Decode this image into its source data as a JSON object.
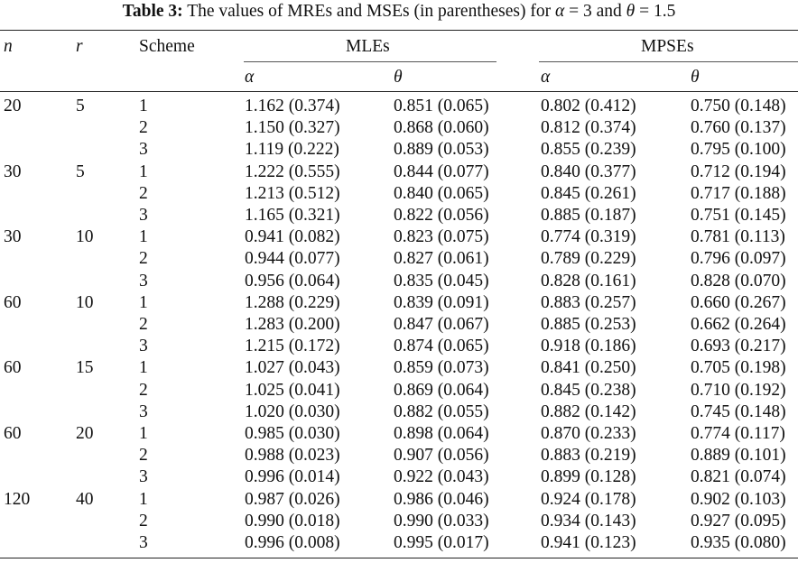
{
  "caption": {
    "label": "Table 3:",
    "pre": "The values of MREs and MSEs (in parentheses) for",
    "alpha_sym": "α",
    "alpha_eq": "= 3 and",
    "theta_sym": "θ",
    "theta_eq": "= 1.5"
  },
  "header": {
    "n": "n",
    "r": "r",
    "scheme": "Scheme",
    "mles": "MLEs",
    "mpses": "MPSEs",
    "alpha": "α",
    "theta": "θ"
  },
  "rows": [
    {
      "n": "20",
      "r": "5",
      "s": "1",
      "ma": "1.162 (0.374)",
      "mt": "0.851 (0.065)",
      "pa": "0.802 (0.412)",
      "pt": "0.750 (0.148)"
    },
    {
      "n": "",
      "r": "",
      "s": "2",
      "ma": "1.150 (0.327)",
      "mt": "0.868 (0.060)",
      "pa": "0.812 (0.374)",
      "pt": "0.760 (0.137)"
    },
    {
      "n": "",
      "r": "",
      "s": "3",
      "ma": "1.119 (0.222)",
      "mt": "0.889 (0.053)",
      "pa": "0.855 (0.239)",
      "pt": "0.795 (0.100)"
    },
    {
      "n": "30",
      "r": "5",
      "s": "1",
      "ma": "1.222 (0.555)",
      "mt": "0.844 (0.077)",
      "pa": "0.840 (0.377)",
      "pt": "0.712 (0.194)"
    },
    {
      "n": "",
      "r": "",
      "s": "2",
      "ma": "1.213 (0.512)",
      "mt": "0.840 (0.065)",
      "pa": "0.845 (0.261)",
      "pt": "0.717 (0.188)"
    },
    {
      "n": "",
      "r": "",
      "s": "3",
      "ma": "1.165 (0.321)",
      "mt": "0.822 (0.056)",
      "pa": "0.885 (0.187)",
      "pt": "0.751 (0.145)"
    },
    {
      "n": "30",
      "r": "10",
      "s": "1",
      "ma": "0.941 (0.082)",
      "mt": "0.823 (0.075)",
      "pa": "0.774 (0.319)",
      "pt": "0.781 (0.113)"
    },
    {
      "n": "",
      "r": "",
      "s": "2",
      "ma": "0.944 (0.077)",
      "mt": "0.827 (0.061)",
      "pa": "0.789 (0.229)",
      "pt": "0.796 (0.097)"
    },
    {
      "n": "",
      "r": "",
      "s": "3",
      "ma": "0.956 (0.064)",
      "mt": "0.835 (0.045)",
      "pa": "0.828 (0.161)",
      "pt": "0.828 (0.070)"
    },
    {
      "n": "60",
      "r": "10",
      "s": "1",
      "ma": "1.288 (0.229)",
      "mt": "0.839 (0.091)",
      "pa": "0.883 (0.257)",
      "pt": "0.660 (0.267)"
    },
    {
      "n": "",
      "r": "",
      "s": "2",
      "ma": "1.283 (0.200)",
      "mt": "0.847 (0.067)",
      "pa": "0.885 (0.253)",
      "pt": "0.662 (0.264)"
    },
    {
      "n": "",
      "r": "",
      "s": "3",
      "ma": "1.215 (0.172)",
      "mt": "0.874 (0.065)",
      "pa": "0.918 (0.186)",
      "pt": "0.693 (0.217)"
    },
    {
      "n": "60",
      "r": "15",
      "s": "1",
      "ma": "1.027 (0.043)",
      "mt": "0.859 (0.073)",
      "pa": "0.841 (0.250)",
      "pt": "0.705 (0.198)"
    },
    {
      "n": "",
      "r": "",
      "s": "2",
      "ma": "1.025 (0.041)",
      "mt": "0.869 (0.064)",
      "pa": "0.845 (0.238)",
      "pt": "0.710 (0.192)"
    },
    {
      "n": "",
      "r": "",
      "s": "3",
      "ma": "1.020 (0.030)",
      "mt": "0.882 (0.055)",
      "pa": "0.882 (0.142)",
      "pt": "0.745 (0.148)"
    },
    {
      "n": "60",
      "r": "20",
      "s": "1",
      "ma": "0.985 (0.030)",
      "mt": "0.898 (0.064)",
      "pa": "0.870 (0.233)",
      "pt": "0.774 (0.117)"
    },
    {
      "n": "",
      "r": "",
      "s": "2",
      "ma": "0.988 (0.023)",
      "mt": "0.907 (0.056)",
      "pa": "0.883 (0.219)",
      "pt": "0.889 (0.101)"
    },
    {
      "n": "",
      "r": "",
      "s": "3",
      "ma": "0.996 (0.014)",
      "mt": "0.922 (0.043)",
      "pa": "0.899 (0.128)",
      "pt": "0.821 (0.074)"
    },
    {
      "n": "120",
      "r": "40",
      "s": "1",
      "ma": "0.987 (0.026)",
      "mt": "0.986 (0.046)",
      "pa": "0.924 (0.178)",
      "pt": "0.902 (0.103)"
    },
    {
      "n": "",
      "r": "",
      "s": "2",
      "ma": "0.990 (0.018)",
      "mt": "0.990 (0.033)",
      "pa": "0.934 (0.143)",
      "pt": "0.927 (0.095)"
    },
    {
      "n": "",
      "r": "",
      "s": "3",
      "ma": "0.996 (0.008)",
      "mt": "0.995 (0.017)",
      "pa": "0.941 (0.123)",
      "pt": "0.935 (0.080)"
    }
  ]
}
